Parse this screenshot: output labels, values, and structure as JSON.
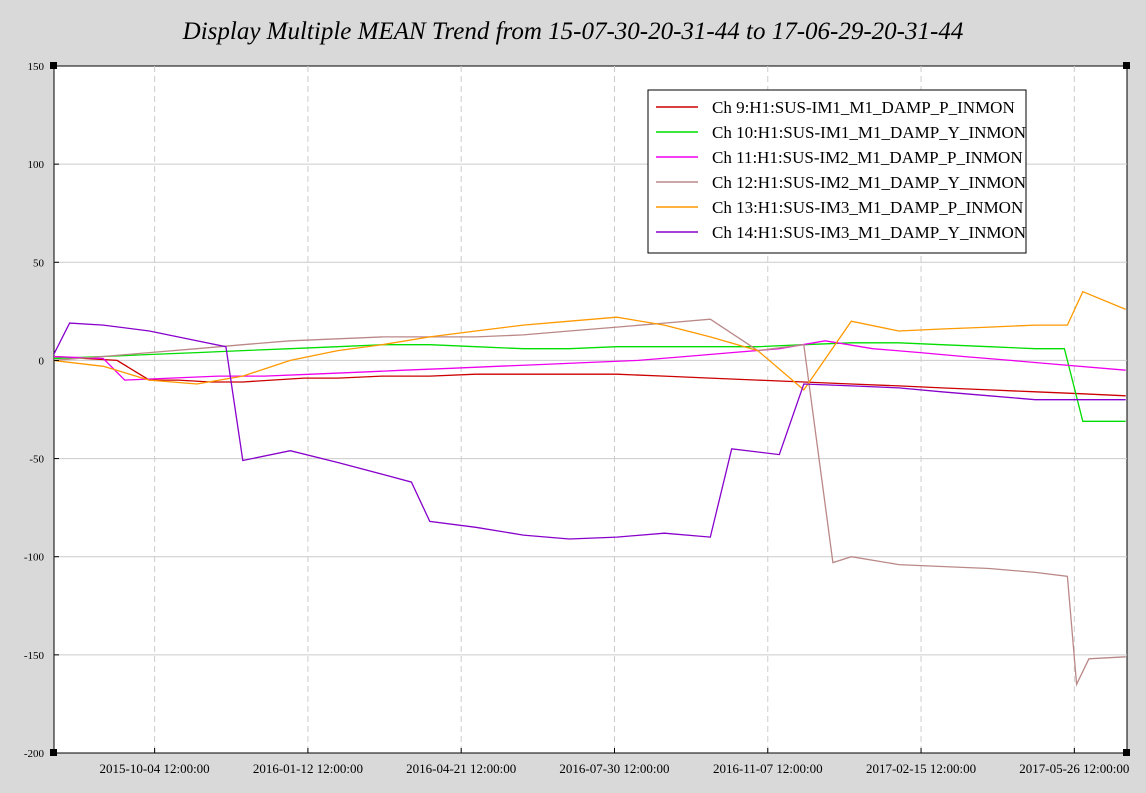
{
  "chart_data": {
    "type": "line",
    "title": "Display Multiple MEAN Trend from 15-07-30-20-31-44 to 17-06-29-20-31-44",
    "xlabel": "",
    "ylabel": "",
    "ylim": [
      -200,
      150
    ],
    "yticks": [
      150,
      100,
      50,
      0,
      -50,
      -100,
      -150,
      -200
    ],
    "xlim": [
      "2015-07-30 20:31:44",
      "2017-06-29 20:31:44"
    ],
    "xtick_labels": [
      "2015-10-04 12:00:00",
      "2016-01-12 12:00:00",
      "2016-04-21 12:00:00",
      "2016-07-30 12:00:00",
      "2016-11-07 12:00:00",
      "2017-02-15 12:00:00",
      "2017-05-26 12:00:00"
    ],
    "xtick_dates": [
      "2015-10-04 12:00",
      "2016-01-12 12:00",
      "2016-04-21 12:00",
      "2016-07-30 12:00",
      "2016-11-07 12:00",
      "2017-02-15 12:00",
      "2017-05-26 12:00"
    ],
    "grid": true,
    "legend_position": "top-right",
    "series": [
      {
        "name": "Ch 9:H1:SUS-IM1_M1_DAMP_P_INMON",
        "color": "#cc0000",
        "x": [
          "2015-07-30",
          "2015-08-20",
          "2015-09-10",
          "2015-10-01",
          "2015-10-20",
          "2015-11-10",
          "2015-12-01",
          "2015-12-20",
          "2016-01-10",
          "2016-02-01",
          "2016-03-01",
          "2016-04-01",
          "2016-05-01",
          "2016-06-01",
          "2016-07-01",
          "2016-08-01",
          "2016-09-01",
          "2016-10-01",
          "2016-11-01",
          "2016-12-01",
          "2017-01-01",
          "2017-02-01",
          "2017-03-01",
          "2017-04-01",
          "2017-05-01",
          "2017-06-01",
          "2017-06-29"
        ],
        "y": [
          2,
          1,
          0,
          -10,
          -10,
          -11,
          -11,
          -10,
          -9,
          -9,
          -8,
          -8,
          -7,
          -7,
          -7,
          -7,
          -8,
          -9,
          -10,
          -11,
          -12,
          -13,
          -14,
          -15,
          -16,
          -17,
          -18
        ]
      },
      {
        "name": "Ch 10:H1:SUS-IM1_M1_DAMP_Y_INMON",
        "color": "#00dd00",
        "x": [
          "2015-07-30",
          "2015-09-01",
          "2015-10-01",
          "2015-11-01",
          "2015-12-01",
          "2016-01-01",
          "2016-02-01",
          "2016-03-01",
          "2016-04-01",
          "2016-05-01",
          "2016-06-01",
          "2016-07-01",
          "2016-08-01",
          "2016-09-01",
          "2016-10-01",
          "2016-11-01",
          "2016-12-01",
          "2017-01-01",
          "2017-02-01",
          "2017-03-01",
          "2017-04-01",
          "2017-05-01",
          "2017-05-20",
          "2017-06-01",
          "2017-06-29"
        ],
        "y": [
          1,
          2,
          3,
          4,
          5,
          6,
          7,
          8,
          8,
          7,
          6,
          6,
          7,
          7,
          7,
          7,
          8,
          9,
          9,
          8,
          7,
          6,
          6,
          -31,
          -31
        ]
      },
      {
        "name": "Ch 11:H1:SUS-IM2_M1_DAMP_P_INMON",
        "color": "#ee00ee",
        "x": [
          "2015-07-30",
          "2015-09-01",
          "2015-09-15",
          "2015-10-15",
          "2015-11-15",
          "2015-12-15",
          "2016-01-15",
          "2016-02-15",
          "2016-03-15",
          "2016-04-15",
          "2016-05-15",
          "2016-06-15",
          "2016-07-15",
          "2016-08-15",
          "2016-09-15",
          "2016-10-15",
          "2016-11-15",
          "2016-12-15",
          "2017-01-15",
          "2017-02-15",
          "2017-03-15",
          "2017-04-15",
          "2017-05-15",
          "2017-06-29"
        ],
        "y": [
          2,
          1,
          -10,
          -9,
          -8,
          -8,
          -7,
          -6,
          -5,
          -4,
          -3,
          -2,
          -1,
          0,
          2,
          4,
          6,
          10,
          6,
          4,
          2,
          0,
          -2,
          -5
        ]
      },
      {
        "name": "Ch 12:H1:SUS-IM2_M1_DAMP_Y_INMON",
        "color": "#bb8888",
        "x": [
          "2015-07-30",
          "2015-09-01",
          "2015-10-01",
          "2015-11-01",
          "2015-12-01",
          "2016-01-01",
          "2016-02-01",
          "2016-03-01",
          "2016-04-01",
          "2016-05-01",
          "2016-06-01",
          "2016-07-01",
          "2016-08-01",
          "2016-09-01",
          "2016-10-01",
          "2016-11-01",
          "2016-12-01",
          "2016-12-20",
          "2017-01-01",
          "2017-02-01",
          "2017-03-01",
          "2017-04-01",
          "2017-05-01",
          "2017-05-22",
          "2017-05-28",
          "2017-06-05",
          "2017-06-29"
        ],
        "y": [
          0,
          2,
          4,
          6,
          8,
          10,
          11,
          12,
          12,
          12,
          13,
          15,
          17,
          19,
          21,
          5,
          8,
          -103,
          -100,
          -104,
          -105,
          -106,
          -108,
          -110,
          -165,
          -152,
          -151
        ]
      },
      {
        "name": "Ch 13:H1:SUS-IM3_M1_DAMP_P_INMON",
        "color": "#ff9900",
        "x": [
          "2015-07-30",
          "2015-09-01",
          "2015-10-01",
          "2015-11-01",
          "2015-12-01",
          "2016-01-01",
          "2016-02-01",
          "2016-03-01",
          "2016-04-01",
          "2016-05-01",
          "2016-06-01",
          "2016-07-01",
          "2016-08-01",
          "2016-09-01",
          "2016-10-01",
          "2016-11-01",
          "2016-12-01",
          "2017-01-01",
          "2017-02-01",
          "2017-03-01",
          "2017-04-01",
          "2017-05-01",
          "2017-05-22",
          "2017-06-01",
          "2017-06-29"
        ],
        "y": [
          0,
          -3,
          -10,
          -12,
          -8,
          0,
          5,
          8,
          12,
          15,
          18,
          20,
          22,
          18,
          12,
          5,
          -15,
          20,
          15,
          16,
          17,
          18,
          18,
          35,
          26
        ]
      },
      {
        "name": "Ch 14:H1:SUS-IM3_M1_DAMP_Y_INMON",
        "color": "#8800cc",
        "x": [
          "2015-07-30",
          "2015-08-10",
          "2015-09-01",
          "2015-10-01",
          "2015-11-01",
          "2015-11-20",
          "2015-12-01",
          "2016-01-01",
          "2016-02-01",
          "2016-03-01",
          "2016-03-20",
          "2016-04-01",
          "2016-05-01",
          "2016-06-01",
          "2016-07-01",
          "2016-08-01",
          "2016-09-01",
          "2016-10-01",
          "2016-10-15",
          "2016-11-15",
          "2016-12-01",
          "2017-01-01",
          "2017-02-01",
          "2017-03-01",
          "2017-04-01",
          "2017-05-01",
          "2017-06-01",
          "2017-06-29"
        ],
        "y": [
          2,
          19,
          18,
          15,
          10,
          7,
          -51,
          -46,
          -52,
          -58,
          -62,
          -82,
          -85,
          -89,
          -91,
          -90,
          -88,
          -90,
          -45,
          -48,
          -12,
          -13,
          -14,
          -16,
          -18,
          -20,
          -20,
          -20
        ]
      }
    ]
  }
}
